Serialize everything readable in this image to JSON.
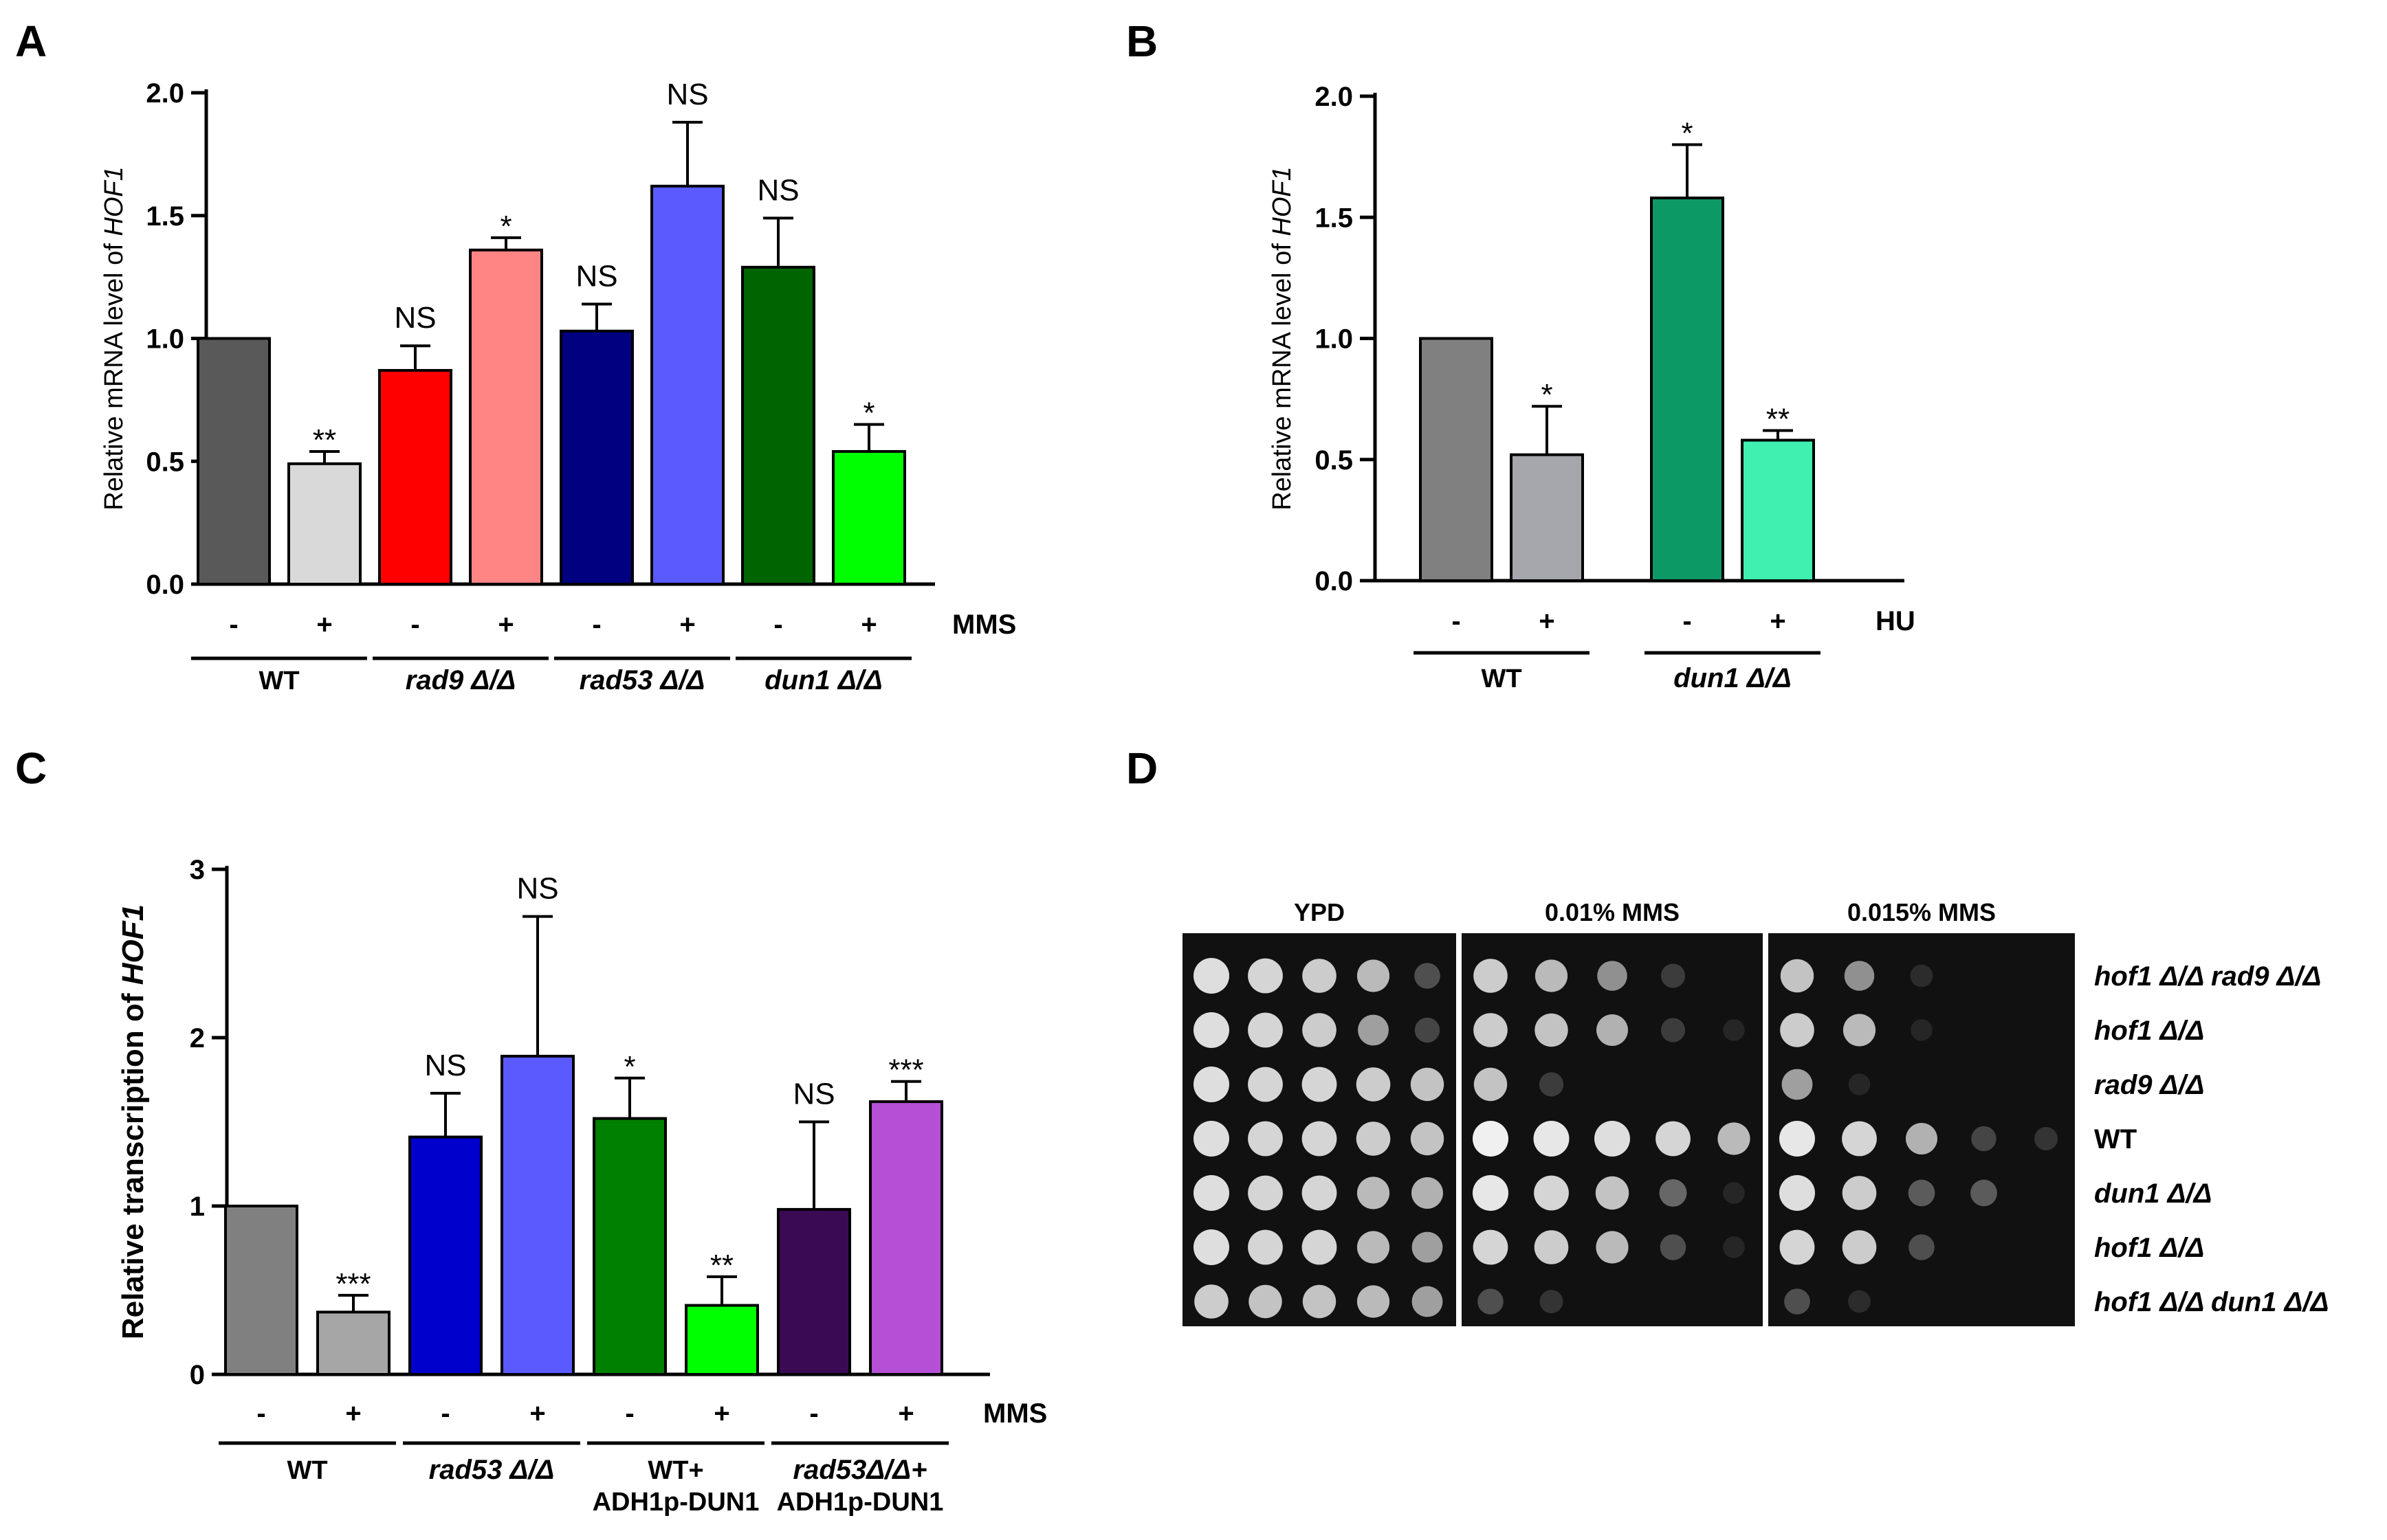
{
  "panels": {
    "A": "A",
    "B": "B",
    "C": "C",
    "D": "D"
  },
  "chart_data": [
    {
      "id": "A",
      "type": "bar",
      "ylabel_prefix": "Relative mRNA level of ",
      "ylabel_gene": "HOF1",
      "ylim": [
        0,
        2.0
      ],
      "yticks": [
        "0.0",
        "0.5",
        "1.0",
        "1.5",
        "2.0"
      ],
      "treatment_label": "MMS",
      "categories": [
        "-",
        "+",
        "-",
        "+",
        "-",
        "+",
        "-",
        "+"
      ],
      "values": [
        1.0,
        0.49,
        0.87,
        1.36,
        1.03,
        1.62,
        1.29,
        0.54
      ],
      "errors": [
        0,
        0.05,
        0.1,
        0.05,
        0.11,
        0.26,
        0.2,
        0.11
      ],
      "significance": [
        "",
        "**",
        "NS",
        "*",
        "NS",
        "NS",
        "NS",
        "*"
      ],
      "colors": [
        "#595959",
        "#d9d9d9",
        "#ff0000",
        "#ff8585",
        "#000080",
        "#5a5aff",
        "#006400",
        "#00ff00"
      ],
      "groups": [
        {
          "label": "WT",
          "italic": false
        },
        {
          "label": "rad9 Δ/Δ",
          "italic": true
        },
        {
          "label": "rad53 Δ/Δ",
          "italic": true
        },
        {
          "label": "dun1 Δ/Δ",
          "italic": true
        }
      ]
    },
    {
      "id": "B",
      "type": "bar",
      "ylabel_prefix": "Relative mRNA level of ",
      "ylabel_gene": "HOF1",
      "ylim": [
        0,
        2.0
      ],
      "yticks": [
        "0.0",
        "0.5",
        "1.0",
        "1.5",
        "2.0"
      ],
      "treatment_label": "HU",
      "categories": [
        "-",
        "+",
        "-",
        "+"
      ],
      "values": [
        1.0,
        0.52,
        1.58,
        0.58
      ],
      "errors": [
        0,
        0.2,
        0.22,
        0.04
      ],
      "significance": [
        "",
        "*",
        "*",
        "**"
      ],
      "colors": [
        "#808080",
        "#a6a6ad",
        "#0d9966",
        "#40f0b0"
      ],
      "groups": [
        {
          "label": "WT",
          "italic": false
        },
        {
          "label": "dun1 Δ/Δ",
          "italic": true
        }
      ]
    },
    {
      "id": "C",
      "type": "bar",
      "ylabel": "Relative transcription of ",
      "ylabel_gene": "HOF1",
      "ylim": [
        0,
        3
      ],
      "yticks": [
        "0",
        "1",
        "2",
        "3"
      ],
      "treatment_label": "MMS",
      "categories": [
        "-",
        "+",
        "-",
        "+",
        "-",
        "+",
        "-",
        "+"
      ],
      "values": [
        1.0,
        0.37,
        1.41,
        1.89,
        1.52,
        0.41,
        0.98,
        1.62
      ],
      "errors": [
        0,
        0.1,
        0.26,
        0.83,
        0.24,
        0.17,
        0.52,
        0.12
      ],
      "significance": [
        "",
        "***",
        "NS",
        "NS",
        "*",
        "**",
        "NS",
        "***"
      ],
      "colors": [
        "#808080",
        "#a6a6a6",
        "#0000cd",
        "#5a5aff",
        "#008000",
        "#00ff00",
        "#3b0a55",
        "#b44fd6"
      ],
      "groups": [
        {
          "label": "WT",
          "label2": "",
          "italic": false
        },
        {
          "label": "rad53 Δ/Δ",
          "label2": "",
          "italic": true
        },
        {
          "label": "WT+",
          "label2": "ADH1p-DUN1",
          "italic": false
        },
        {
          "label": "rad53Δ/Δ+",
          "label2": "ADH1p-DUN1",
          "italic": true
        }
      ]
    }
  ],
  "spot_assay": {
    "columns": [
      "YPD",
      "0.01% MMS",
      "0.015% MMS"
    ],
    "strains": [
      {
        "label": "hof1 Δ/Δ rad9 Δ/Δ",
        "italic": true
      },
      {
        "label": "hof1 Δ/Δ",
        "italic": true
      },
      {
        "label": "rad9 Δ/Δ",
        "italic": true
      },
      {
        "label": "WT",
        "italic": false
      },
      {
        "label": "dun1 Δ/Δ",
        "italic": true
      },
      {
        "label": "hof1 Δ/Δ",
        "italic": true
      },
      {
        "label": "hof1 Δ/Δ dun1 Δ/Δ",
        "italic": true
      }
    ],
    "growth": [
      [
        [
          0.9,
          0.85,
          0.8,
          0.7,
          0.3
        ],
        [
          0.8,
          0.7,
          0.55,
          0.2,
          0.0
        ],
        [
          0.75,
          0.55,
          0.1,
          0.0,
          0.0
        ]
      ],
      [
        [
          0.9,
          0.85,
          0.8,
          0.6,
          0.25
        ],
        [
          0.8,
          0.75,
          0.65,
          0.2,
          0.05
        ],
        [
          0.8,
          0.7,
          0.05,
          0.0,
          0.0
        ]
      ],
      [
        [
          0.9,
          0.85,
          0.85,
          0.8,
          0.75
        ],
        [
          0.75,
          0.2,
          0.0,
          0.0,
          0.0
        ],
        [
          0.6,
          0.05,
          0.0,
          0.0,
          0.0
        ]
      ],
      [
        [
          0.9,
          0.85,
          0.85,
          0.8,
          0.75
        ],
        [
          1.0,
          0.95,
          0.9,
          0.85,
          0.7
        ],
        [
          0.95,
          0.85,
          0.65,
          0.25,
          0.15
        ]
      ],
      [
        [
          0.9,
          0.85,
          0.85,
          0.7,
          0.65
        ],
        [
          0.95,
          0.85,
          0.75,
          0.4,
          0.05
        ],
        [
          0.9,
          0.8,
          0.35,
          0.35,
          0.0
        ]
      ],
      [
        [
          0.9,
          0.85,
          0.85,
          0.7,
          0.6
        ],
        [
          0.85,
          0.8,
          0.7,
          0.3,
          0.05
        ],
        [
          0.85,
          0.8,
          0.3,
          0.0,
          0.0
        ]
      ],
      [
        [
          0.8,
          0.75,
          0.75,
          0.7,
          0.6
        ],
        [
          0.3,
          0.15,
          0.0,
          0.0,
          0.0
        ],
        [
          0.3,
          0.1,
          0.0,
          0.0,
          0.0
        ]
      ]
    ]
  }
}
